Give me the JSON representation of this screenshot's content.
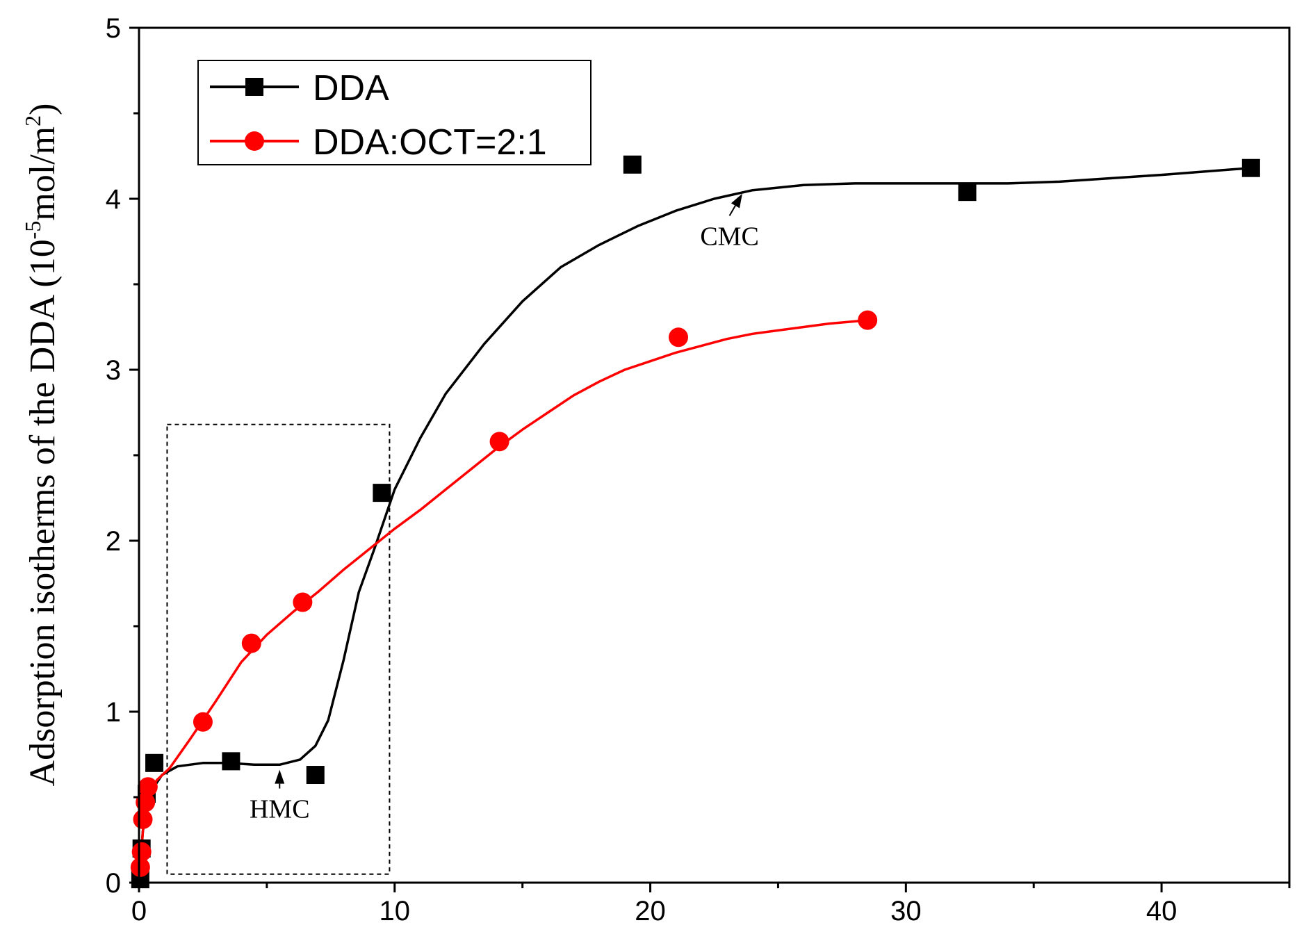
{
  "chart_data": {
    "type": "line",
    "title": "",
    "xlabel": "",
    "ylabel": {
      "main": "Adsorption isotherms of the DDA (10",
      "sup1": "-5",
      "mid": "mol/m",
      "sup2": "2",
      "end": ")"
    },
    "xlim": [
      0,
      45
    ],
    "ylim": [
      0,
      5
    ],
    "x_ticks": [
      0,
      10,
      20,
      30,
      40
    ],
    "y_ticks": [
      0,
      1,
      2,
      3,
      4,
      5
    ],
    "legend": {
      "position": "top-left",
      "entries": [
        "DDA",
        "DDA:OCT=2:1"
      ]
    },
    "series": [
      {
        "name": "DDA",
        "color": "#000000",
        "marker": "square",
        "points": [
          {
            "x": 0.05,
            "y": 0.02
          },
          {
            "x": 0.1,
            "y": 0.2
          },
          {
            "x": 0.3,
            "y": 0.52
          },
          {
            "x": 0.6,
            "y": 0.7
          },
          {
            "x": 3.6,
            "y": 0.71
          },
          {
            "x": 6.9,
            "y": 0.63
          },
          {
            "x": 9.5,
            "y": 2.28
          },
          {
            "x": 19.3,
            "y": 4.2
          },
          {
            "x": 32.4,
            "y": 4.04
          },
          {
            "x": 43.5,
            "y": 4.18
          }
        ],
        "fit": [
          [
            0,
            0.0
          ],
          [
            0.15,
            0.3
          ],
          [
            0.4,
            0.52
          ],
          [
            0.9,
            0.63
          ],
          [
            1.5,
            0.68
          ],
          [
            2.5,
            0.7
          ],
          [
            3.5,
            0.7
          ],
          [
            4.5,
            0.69
          ],
          [
            5.5,
            0.69
          ],
          [
            6.3,
            0.72
          ],
          [
            6.9,
            0.8
          ],
          [
            7.4,
            0.95
          ],
          [
            8.0,
            1.3
          ],
          [
            8.6,
            1.7
          ],
          [
            9.2,
            1.95
          ],
          [
            10.0,
            2.3
          ],
          [
            11.0,
            2.6
          ],
          [
            12.0,
            2.86
          ],
          [
            13.5,
            3.15
          ],
          [
            15.0,
            3.4
          ],
          [
            16.5,
            3.6
          ],
          [
            18.0,
            3.73
          ],
          [
            19.5,
            3.84
          ],
          [
            21.0,
            3.93
          ],
          [
            22.5,
            4.0
          ],
          [
            24.0,
            4.05
          ],
          [
            26.0,
            4.08
          ],
          [
            28.0,
            4.09
          ],
          [
            30.0,
            4.09
          ],
          [
            32.0,
            4.09
          ],
          [
            34.0,
            4.09
          ],
          [
            36.0,
            4.1
          ],
          [
            38.0,
            4.12
          ],
          [
            40.0,
            4.14
          ],
          [
            43.5,
            4.18
          ]
        ]
      },
      {
        "name": "DDA:OCT=2:1",
        "color": "#ff0000",
        "marker": "circle",
        "points": [
          {
            "x": 0.05,
            "y": 0.09
          },
          {
            "x": 0.1,
            "y": 0.18
          },
          {
            "x": 0.15,
            "y": 0.37
          },
          {
            "x": 0.25,
            "y": 0.47
          },
          {
            "x": 0.35,
            "y": 0.56
          },
          {
            "x": 2.5,
            "y": 0.94
          },
          {
            "x": 4.4,
            "y": 1.4
          },
          {
            "x": 6.4,
            "y": 1.64
          },
          {
            "x": 14.1,
            "y": 2.58
          },
          {
            "x": 21.1,
            "y": 3.19
          },
          {
            "x": 28.5,
            "y": 3.29
          }
        ],
        "fit": [
          [
            0,
            0.0
          ],
          [
            0.1,
            0.2
          ],
          [
            0.2,
            0.4
          ],
          [
            0.35,
            0.52
          ],
          [
            0.7,
            0.6
          ],
          [
            1.2,
            0.67
          ],
          [
            2.0,
            0.84
          ],
          [
            3.0,
            1.06
          ],
          [
            4.0,
            1.29
          ],
          [
            5.0,
            1.45
          ],
          [
            6.0,
            1.58
          ],
          [
            7.0,
            1.7
          ],
          [
            8.0,
            1.83
          ],
          [
            9.0,
            1.95
          ],
          [
            10.0,
            2.07
          ],
          [
            11.0,
            2.18
          ],
          [
            12.0,
            2.3
          ],
          [
            13.0,
            2.42
          ],
          [
            14.0,
            2.54
          ],
          [
            15.0,
            2.65
          ],
          [
            16.0,
            2.75
          ],
          [
            17.0,
            2.85
          ],
          [
            18.0,
            2.93
          ],
          [
            19.0,
            3.0
          ],
          [
            20.0,
            3.05
          ],
          [
            21.0,
            3.1
          ],
          [
            22.0,
            3.14
          ],
          [
            23.0,
            3.18
          ],
          [
            24.0,
            3.21
          ],
          [
            25.0,
            3.23
          ],
          [
            26.0,
            3.25
          ],
          [
            27.0,
            3.27
          ],
          [
            28.5,
            3.29
          ]
        ]
      }
    ],
    "annotations": [
      {
        "text": "HMC",
        "arrow_to": {
          "x": 5.5,
          "y": 0.66
        },
        "label_at": {
          "x": 5.5,
          "y": 0.38
        }
      },
      {
        "text": "CMC",
        "arrow_to": {
          "x": 23.6,
          "y": 4.03
        },
        "label_at": {
          "x": 23.1,
          "y": 3.73
        }
      }
    ],
    "highlight_box": {
      "x": [
        1.1,
        9.8
      ],
      "y": [
        0.05,
        2.68
      ]
    }
  }
}
